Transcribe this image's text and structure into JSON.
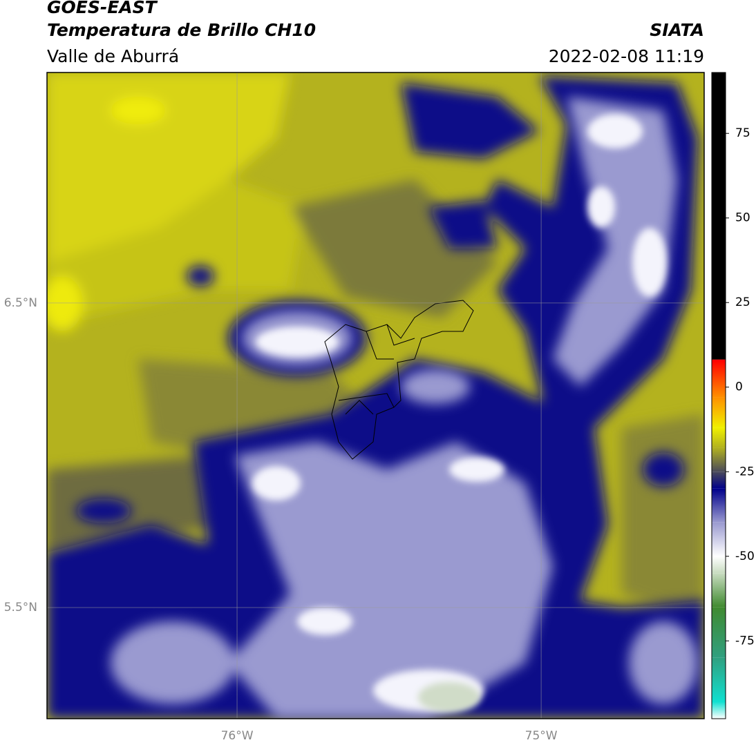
{
  "header": {
    "title": "GOES-EAST",
    "subtitle": "Temperatura de Brillo CH10",
    "region": "Valle de Aburrá",
    "agency": "SIATA",
    "datetime": "2022-02-08 11:19"
  },
  "map": {
    "lon_lim": [
      -76.625,
      -74.464
    ],
    "lat_lim": [
      5.135,
      7.257
    ],
    "lon_ticks": [
      {
        "value": -76,
        "label": "76°W"
      },
      {
        "value": -75,
        "label": "75°W"
      }
    ],
    "lat_ticks": [
      {
        "value": 6.5,
        "label": "6.5°N"
      },
      {
        "value": 5.5,
        "label": "5.5°N"
      }
    ],
    "grid": true
  },
  "colorbar": {
    "lim": [
      -98,
      93
    ],
    "ticks": [
      75,
      50,
      25,
      0,
      -25,
      -50,
      -75
    ],
    "stops": [
      {
        "value": -98,
        "color": "#ffffff"
      },
      {
        "value": -93,
        "color": "#10e0d0"
      },
      {
        "value": -80,
        "color": "#30a080"
      },
      {
        "value": -65,
        "color": "#408a30"
      },
      {
        "value": -55,
        "color": "#c8dcc0"
      },
      {
        "value": -50,
        "color": "#ffffff"
      },
      {
        "value": -40,
        "color": "#9a9ad0"
      },
      {
        "value": -30,
        "color": "#00008a"
      },
      {
        "value": -25,
        "color": "#4a4a5a"
      },
      {
        "value": -18,
        "color": "#b0b020"
      },
      {
        "value": -12,
        "color": "#f0f000"
      },
      {
        "value": -3,
        "color": "#ff9000"
      },
      {
        "value": 8,
        "color": "#ff0000"
      },
      {
        "value": 8.3,
        "color": "#000000"
      },
      {
        "value": 93,
        "color": "#000000"
      }
    ]
  }
}
